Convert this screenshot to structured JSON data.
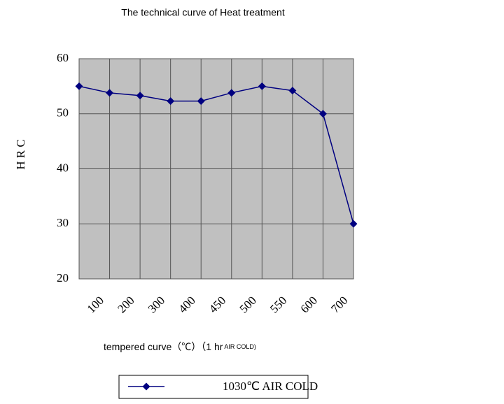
{
  "chart_data": {
    "type": "line",
    "title": "The technical curve of Heat treatment",
    "y_label": "H R C",
    "x_label": "tempered curve（℃）（1 hr",
    "x_label_note": "AIR COLD)",
    "categories": [
      null,
      "100",
      "200",
      "300",
      "400",
      "450",
      "500",
      "550",
      "600",
      "700"
    ],
    "series": [
      {
        "name": "1030℃ AIR COLD",
        "color": "#000080",
        "values": [
          55,
          53.8,
          53.3,
          52.3,
          52.3,
          53.8,
          55,
          54.2,
          50,
          30
        ]
      }
    ],
    "ylim": [
      20,
      60
    ],
    "yticks": [
      20,
      30,
      40,
      50,
      60
    ],
    "grid": true
  }
}
